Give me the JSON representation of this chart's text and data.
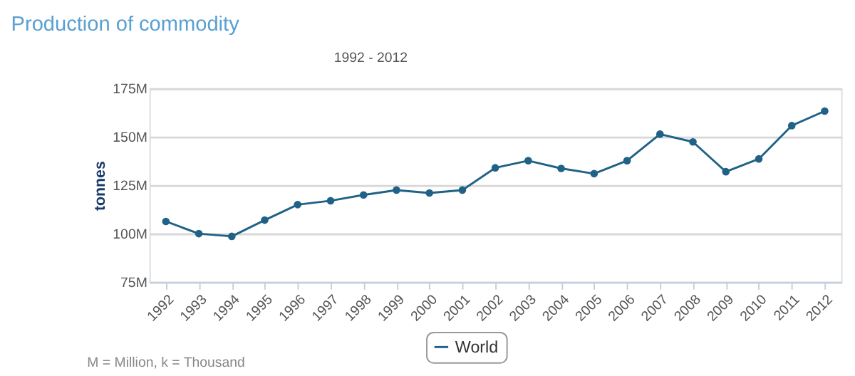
{
  "chart_data": {
    "type": "line",
    "title": "Production of commodity",
    "subtitle": "1992 - 2012",
    "ylabel": "tonnes",
    "categories": [
      "1992",
      "1993",
      "1994",
      "1995",
      "1996",
      "1997",
      "1998",
      "1999",
      "2000",
      "2001",
      "2002",
      "2003",
      "2004",
      "2005",
      "2006",
      "2007",
      "2008",
      "2009",
      "2010",
      "2011",
      "2012"
    ],
    "series": [
      {
        "name": "World",
        "color": "#1f6286",
        "values": [
          106.3,
          100,
          98.6,
          107,
          115,
          117,
          120,
          122.5,
          121,
          122.5,
          134,
          137.7,
          133.7,
          131,
          137.7,
          151.4,
          147.4,
          132,
          138.6,
          155.8,
          163.3
        ]
      }
    ],
    "ylim": [
      75,
      175
    ],
    "yticks": [
      {
        "value": 75,
        "label": "75M"
      },
      {
        "value": 100,
        "label": "100M"
      },
      {
        "value": 125,
        "label": "125M"
      },
      {
        "value": 150,
        "label": "150M"
      },
      {
        "value": 175,
        "label": "175M"
      }
    ],
    "grid": "y",
    "legend": "bottom",
    "marker": "circle",
    "line_style": "solid",
    "annotations": [
      "M = Million, k = Thousand"
    ]
  }
}
